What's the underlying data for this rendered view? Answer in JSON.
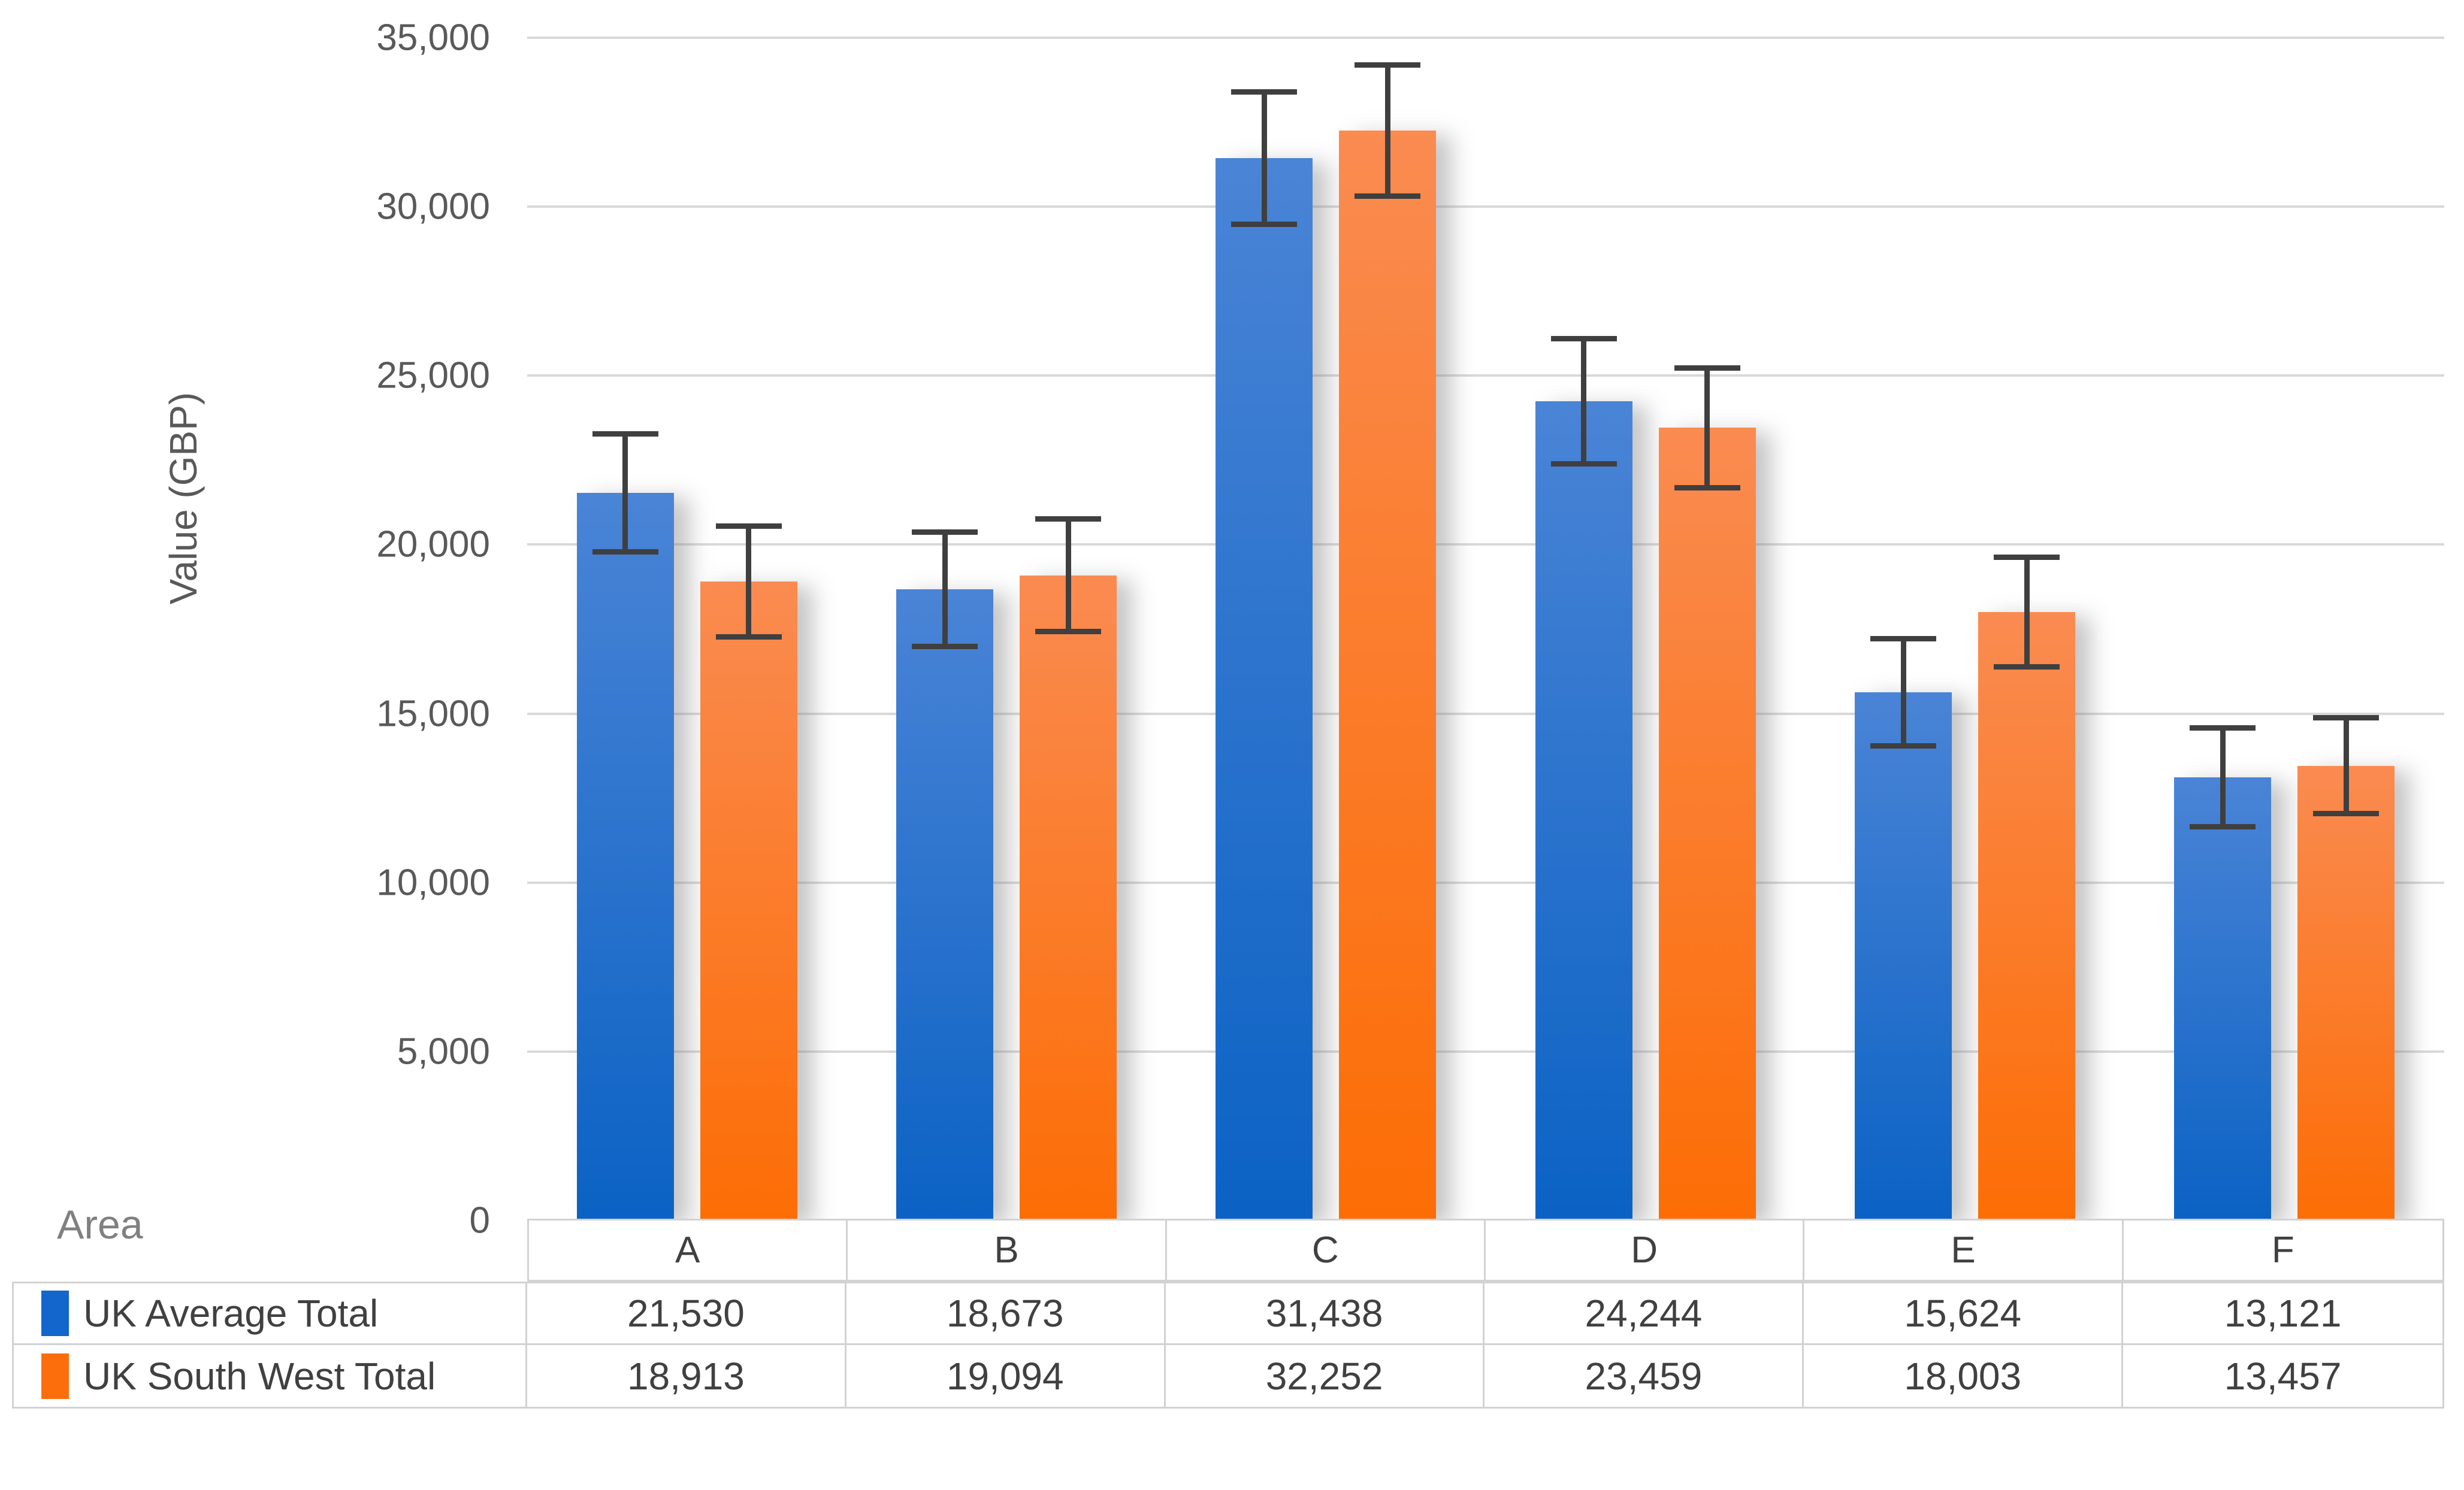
{
  "chart_data": {
    "type": "bar",
    "title": "",
    "categories": [
      "A",
      "B",
      "C",
      "D",
      "E",
      "F"
    ],
    "series": [
      {
        "name": "UK Average Total",
        "values": [
          21530,
          18673,
          31438,
          24244,
          15624,
          13121
        ],
        "error_bars_plus_minus": [
          1750,
          1700,
          1975,
          1855,
          1595,
          1470
        ],
        "bar_gradient_top": "#4A84D6",
        "bar_gradient_bottom": "#0B62C4",
        "legend_color": "#1266CC"
      },
      {
        "name": "UK South West Total",
        "values": [
          18913,
          19094,
          32252,
          23459,
          18003,
          13457
        ],
        "error_bars_plus_minus": [
          1650,
          1675,
          1950,
          1780,
          1625,
          1425
        ],
        "bar_gradient_top": "#FA8B51",
        "bar_gradient_bottom": "#FC6D05",
        "legend_color": "#FC6E0C"
      }
    ],
    "xlabel": "Area",
    "ylabel": "Value (GBP)",
    "ylim": [
      0,
      35000
    ],
    "ytick_step": 5000,
    "ytick_labels": [
      "35,000",
      "30,000",
      "25,000",
      "20,000",
      "15,000",
      "10,000",
      "5,000",
      "0"
    ],
    "grid": true,
    "error_bars": true,
    "legend_position": "table-rows-below-chart",
    "style": {
      "gridline_color": "#D9D9D9",
      "error_bar_color": "#3F3F3F",
      "axis_text_color": "#595959",
      "xlabel_color": "#808080",
      "table_text_color": "#404040",
      "table_border_color": "#D2D2D2",
      "background": "#FFFFFF"
    }
  }
}
